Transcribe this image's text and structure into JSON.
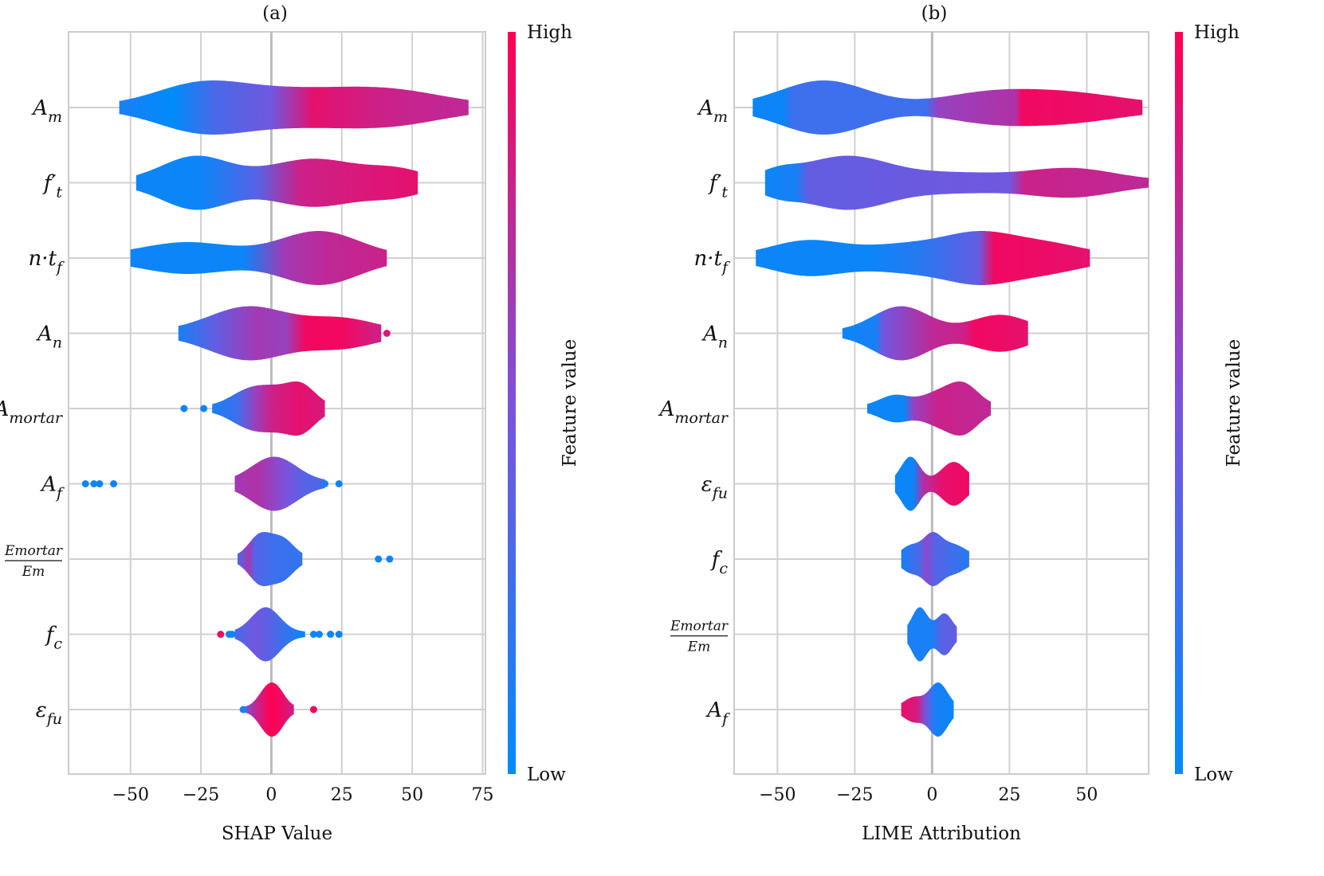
{
  "figure": {
    "colormap": {
      "low": "#008bfb",
      "mid": "#7c52dc",
      "high": "#ff0052"
    }
  },
  "chart_data": [
    {
      "type": "violin",
      "title": "(a)",
      "xlabel": "SHAP Value",
      "xlim": [
        -72,
        76
      ],
      "xticks": [
        -50,
        -25,
        0,
        25,
        50,
        75
      ],
      "xtick_labels": [
        "−50",
        "−25",
        "0",
        "25",
        "50",
        "75"
      ],
      "colorbar": {
        "high_label": "High",
        "low_label": "Low",
        "title": "Feature value"
      },
      "features": [
        {
          "name": "A_m",
          "main": "A",
          "sub": "m",
          "range": [
            -54,
            70
          ],
          "peaks": [
            {
              "x": -25,
              "h": 1.0,
              "w": 16
            },
            {
              "x": 5,
              "h": 0.55,
              "w": 18
            },
            {
              "x": 40,
              "h": 0.75,
              "w": 20
            }
          ],
          "colors": [
            [
              -54,
              0.1
            ],
            [
              -35,
              0.0
            ],
            [
              -20,
              0.3
            ],
            [
              0,
              0.45
            ],
            [
              15,
              0.9
            ],
            [
              40,
              0.8
            ],
            [
              70,
              0.75
            ]
          ],
          "outliers": []
        },
        {
          "name": "f't",
          "main": "f",
          "sub": "t",
          "prime": true,
          "range": [
            -48,
            52
          ],
          "peaks": [
            {
              "x": -27,
              "h": 1.0,
              "w": 12
            },
            {
              "x": 15,
              "h": 0.9,
              "w": 16
            },
            {
              "x": 45,
              "h": 0.4,
              "w": 10
            }
          ],
          "colors": [
            [
              -48,
              0.05
            ],
            [
              -25,
              0.05
            ],
            [
              -5,
              0.35
            ],
            [
              10,
              0.8
            ],
            [
              30,
              0.85
            ],
            [
              52,
              0.9
            ]
          ],
          "outliers": []
        },
        {
          "name": "n·t_f",
          "main": "n·t",
          "sub": "f",
          "range": [
            -50,
            41
          ],
          "peaks": [
            {
              "x": -30,
              "h": 0.55,
              "w": 16
            },
            {
              "x": 17,
              "h": 1.0,
              "w": 14
            }
          ],
          "colors": [
            [
              -50,
              0.05
            ],
            [
              -10,
              0.05
            ],
            [
              5,
              0.65
            ],
            [
              20,
              0.75
            ],
            [
              41,
              0.8
            ]
          ],
          "outliers": []
        },
        {
          "name": "A_n",
          "main": "A",
          "sub": "n",
          "range": [
            -33,
            39
          ],
          "peaks": [
            {
              "x": -8,
              "h": 1.0,
              "w": 14
            },
            {
              "x": 25,
              "h": 0.5,
              "w": 12
            }
          ],
          "colors": [
            [
              -33,
              0.1
            ],
            [
              -20,
              0.4
            ],
            [
              -5,
              0.65
            ],
            [
              5,
              0.6
            ],
            [
              12,
              0.95
            ],
            [
              25,
              0.95
            ],
            [
              39,
              0.8
            ]
          ],
          "outliers": [
            {
              "x": 41,
              "c": 0.85
            }
          ]
        },
        {
          "name": "A_mortar",
          "main": "A",
          "sub": "mortar",
          "range": [
            -21,
            19
          ],
          "peaks": [
            {
              "x": -10,
              "h": 0.45,
              "w": 6
            },
            {
              "x": 0,
              "h": 1.0,
              "w": 8
            },
            {
              "x": 11,
              "h": 0.9,
              "w": 5
            }
          ],
          "colors": [
            [
              -21,
              0.1
            ],
            [
              -12,
              0.25
            ],
            [
              -6,
              0.6
            ],
            [
              0,
              0.8
            ],
            [
              10,
              0.9
            ],
            [
              19,
              0.85
            ]
          ],
          "outliers": [
            {
              "x": -31,
              "c": 0.05
            },
            {
              "x": -24,
              "c": 0.05
            }
          ]
        },
        {
          "name": "A_f",
          "main": "A",
          "sub": "f",
          "range": [
            -13,
            19
          ],
          "peaks": [
            {
              "x": 1,
              "h": 1.0,
              "w": 8
            }
          ],
          "colors": [
            [
              -13,
              0.65
            ],
            [
              -5,
              0.7
            ],
            [
              5,
              0.5
            ],
            [
              12,
              0.35
            ],
            [
              19,
              0.3
            ]
          ],
          "outliers": [
            {
              "x": -66,
              "c": 0.05
            },
            {
              "x": -63,
              "c": 0.05
            },
            {
              "x": -61,
              "c": 0.05
            },
            {
              "x": -56,
              "c": 0.05
            },
            {
              "x": 19,
              "c": 0.1
            },
            {
              "x": 24,
              "c": 0.05
            }
          ]
        },
        {
          "name": "Emortar/Em",
          "main": "Emortar",
          "den": "Em",
          "frac": true,
          "range": [
            -12,
            11
          ],
          "peaks": [
            {
              "x": -4,
              "h": 1.0,
              "w": 4
            },
            {
              "x": 4,
              "h": 0.8,
              "w": 4
            }
          ],
          "colors": [
            [
              -12,
              0.3
            ],
            [
              -8,
              0.65
            ],
            [
              -6,
              0.35
            ],
            [
              0,
              0.25
            ],
            [
              11,
              0.2
            ]
          ],
          "outliers": [
            {
              "x": 38,
              "c": 0.05
            },
            {
              "x": 42,
              "c": 0.05
            }
          ]
        },
        {
          "name": "f_c",
          "main": "f",
          "sub": "c",
          "range": [
            -13,
            12
          ],
          "peaks": [
            {
              "x": -2,
              "h": 1.0,
              "w": 5
            }
          ],
          "colors": [
            [
              -13,
              0.3
            ],
            [
              -6,
              0.45
            ],
            [
              0,
              0.35
            ],
            [
              5,
              0.2
            ],
            [
              12,
              0.1
            ]
          ],
          "outliers": [
            {
              "x": -18,
              "c": 0.95
            },
            {
              "x": -14,
              "c": 0.05
            },
            {
              "x": -15,
              "c": 0.05
            },
            {
              "x": 10,
              "c": 0.05
            },
            {
              "x": 15,
              "c": 0.05
            },
            {
              "x": 17,
              "c": 0.05
            },
            {
              "x": 21,
              "c": 0.05
            },
            {
              "x": 24,
              "c": 0.05
            }
          ]
        },
        {
          "name": "ε_fu",
          "main": "ε",
          "sub": "fu",
          "range": [
            -10,
            8
          ],
          "peaks": [
            {
              "x": -2,
              "h": 0.9,
              "w": 3
            },
            {
              "x": 2,
              "h": 1.0,
              "w": 3
            }
          ],
          "colors": [
            [
              -10,
              0.4
            ],
            [
              -5,
              0.8
            ],
            [
              0,
              1.0
            ],
            [
              5,
              0.9
            ],
            [
              8,
              0.8
            ]
          ],
          "outliers": [
            {
              "x": -10,
              "c": 0.1
            },
            {
              "x": 15,
              "c": 0.95
            }
          ]
        }
      ]
    },
    {
      "type": "violin",
      "title": "(b)",
      "xlabel": "LIME Attribution",
      "xlim": [
        -64,
        70
      ],
      "xticks": [
        -50,
        -25,
        0,
        25,
        50
      ],
      "xtick_labels": [
        "−50",
        "−25",
        "0",
        "25",
        "50"
      ],
      "colorbar": {
        "high_label": "High",
        "low_label": "Low",
        "title": "Feature value"
      },
      "features": [
        {
          "name": "A_m",
          "main": "A",
          "sub": "m",
          "range": [
            -58,
            68
          ],
          "peaks": [
            {
              "x": -35,
              "h": 1.0,
              "w": 14
            },
            {
              "x": 15,
              "h": 0.3,
              "w": 14
            },
            {
              "x": 40,
              "h": 0.55,
              "w": 20
            }
          ],
          "colors": [
            [
              -58,
              0.05
            ],
            [
              -48,
              0.05
            ],
            [
              -45,
              0.25
            ],
            [
              -2,
              0.25
            ],
            [
              2,
              0.6
            ],
            [
              27,
              0.7
            ],
            [
              29,
              0.95
            ],
            [
              68,
              0.9
            ]
          ],
          "outliers": []
        },
        {
          "name": "f't",
          "main": "f",
          "sub": "t",
          "prime": true,
          "range": [
            -54,
            70
          ],
          "peaks": [
            {
              "x": -50,
              "h": 0.3,
              "w": 6
            },
            {
              "x": -28,
              "h": 1.0,
              "w": 14
            },
            {
              "x": 8,
              "h": 0.3,
              "w": 16
            },
            {
              "x": 45,
              "h": 0.5,
              "w": 14
            }
          ],
          "colors": [
            [
              -54,
              0.05
            ],
            [
              -44,
              0.1
            ],
            [
              -40,
              0.4
            ],
            [
              25,
              0.45
            ],
            [
              30,
              0.8
            ],
            [
              70,
              0.75
            ]
          ],
          "outliers": []
        },
        {
          "name": "n·t_f",
          "main": "n·t",
          "sub": "f",
          "range": [
            -57,
            51
          ],
          "peaks": [
            {
              "x": -40,
              "h": 0.7,
              "w": 12
            },
            {
              "x": -10,
              "h": 0.45,
              "w": 12
            },
            {
              "x": 15,
              "h": 1.0,
              "w": 12
            },
            {
              "x": 38,
              "h": 0.5,
              "w": 12
            }
          ],
          "colors": [
            [
              -57,
              0.05
            ],
            [
              -20,
              0.05
            ],
            [
              -5,
              0.15
            ],
            [
              15,
              0.4
            ],
            [
              20,
              0.95
            ],
            [
              51,
              0.9
            ]
          ],
          "outliers": []
        },
        {
          "name": "A_n",
          "main": "A",
          "sub": "n",
          "range": [
            -29,
            31
          ],
          "peaks": [
            {
              "x": -10,
              "h": 1.0,
              "w": 9
            },
            {
              "x": 22,
              "h": 0.65,
              "w": 9
            }
          ],
          "colors": [
            [
              -29,
              0.05
            ],
            [
              -18,
              0.1
            ],
            [
              -16,
              0.45
            ],
            [
              0,
              0.75
            ],
            [
              10,
              0.8
            ],
            [
              14,
              0.95
            ],
            [
              31,
              0.9
            ]
          ],
          "outliers": []
        },
        {
          "name": "A_mortar",
          "main": "A",
          "sub": "mortar",
          "range": [
            -21,
            19
          ],
          "peaks": [
            {
              "x": -12,
              "h": 0.5,
              "w": 5
            },
            {
              "x": 1,
              "h": 0.5,
              "w": 5
            },
            {
              "x": 10,
              "h": 1.0,
              "w": 5
            }
          ],
          "colors": [
            [
              -21,
              0.05
            ],
            [
              -9,
              0.05
            ],
            [
              -6,
              0.6
            ],
            [
              2,
              0.8
            ],
            [
              19,
              0.75
            ]
          ],
          "outliers": []
        },
        {
          "name": "ε_fu",
          "main": "ε",
          "sub": "fu",
          "range": [
            -12,
            12
          ],
          "peaks": [
            {
              "x": -7,
              "h": 0.95,
              "w": 3
            },
            {
              "x": 7,
              "h": 0.75,
              "w": 4
            }
          ],
          "colors": [
            [
              -12,
              0.05
            ],
            [
              -6,
              0.05
            ],
            [
              -3,
              0.7
            ],
            [
              3,
              0.9
            ],
            [
              12,
              0.95
            ]
          ],
          "outliers": []
        },
        {
          "name": "f_c",
          "main": "f",
          "sub": "c",
          "range": [
            -10,
            12
          ],
          "peaks": [
            {
              "x": -7,
              "h": 0.5,
              "w": 3
            },
            {
              "x": 0,
              "h": 1.0,
              "w": 3
            },
            {
              "x": 7,
              "h": 0.55,
              "w": 4
            }
          ],
          "colors": [
            [
              -10,
              0.1
            ],
            [
              -4,
              0.3
            ],
            [
              -2,
              0.55
            ],
            [
              1,
              0.35
            ],
            [
              12,
              0.15
            ]
          ],
          "outliers": []
        },
        {
          "name": "Emortar/Em",
          "main": "Emortar",
          "den": "Em",
          "frac": true,
          "range": [
            -8,
            8
          ],
          "peaks": [
            {
              "x": -4,
              "h": 1.0,
              "w": 2.5
            },
            {
              "x": 4,
              "h": 0.75,
              "w": 2.5
            }
          ],
          "colors": [
            [
              -8,
              0.1
            ],
            [
              0,
              0.1
            ],
            [
              3,
              0.35
            ],
            [
              8,
              0.4
            ]
          ],
          "outliers": []
        },
        {
          "name": "A_f",
          "main": "A",
          "sub": "f",
          "range": [
            -10,
            7
          ],
          "peaks": [
            {
              "x": -6,
              "h": 0.4,
              "w": 3
            },
            {
              "x": 2,
              "h": 1.0,
              "w": 3
            }
          ],
          "colors": [
            [
              -10,
              0.9
            ],
            [
              -5,
              0.85
            ],
            [
              -2,
              0.45
            ],
            [
              1,
              0.1
            ],
            [
              7,
              0.05
            ]
          ],
          "outliers": []
        }
      ]
    }
  ]
}
